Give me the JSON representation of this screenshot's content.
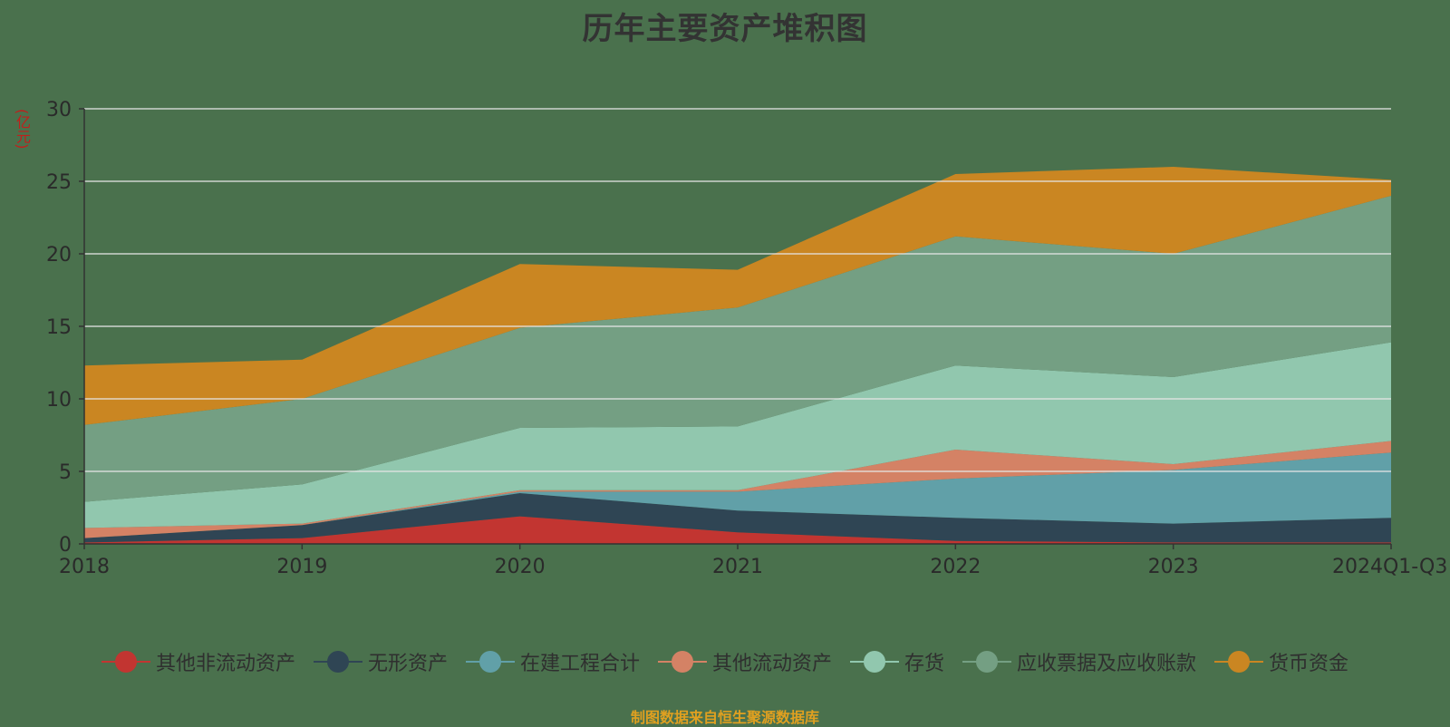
{
  "chart_data": {
    "type": "area",
    "stacked": true,
    "title": "历年主要资产堆积图",
    "ylabel": "(亿元)",
    "xlabel": "",
    "categories": [
      "2018",
      "2019",
      "2020",
      "2021",
      "2022",
      "2023",
      "2024Q1-Q3"
    ],
    "ylim": [
      0,
      30
    ],
    "yticks": [
      0,
      5,
      10,
      15,
      20,
      25,
      30
    ],
    "grid": true,
    "legend_position": "bottom",
    "series": [
      {
        "name": "其他非流动资产",
        "color": "#c23531",
        "values": [
          0.1,
          0.4,
          1.9,
          0.8,
          0.2,
          0.1,
          0.1
        ]
      },
      {
        "name": "无形资产",
        "color": "#2f4554",
        "values": [
          0.3,
          0.9,
          1.6,
          1.5,
          1.6,
          1.3,
          1.7
        ]
      },
      {
        "name": "在建工程合计",
        "color": "#61a0a8",
        "values": [
          0.0,
          0.0,
          0.1,
          1.3,
          2.7,
          3.7,
          4.5
        ]
      },
      {
        "name": "其他流动资产",
        "color": "#d48265",
        "values": [
          0.7,
          0.1,
          0.1,
          0.1,
          2.0,
          0.4,
          0.8
        ]
      },
      {
        "name": "存货",
        "color": "#91c7ae",
        "values": [
          1.8,
          2.7,
          4.3,
          4.4,
          5.8,
          6.0,
          6.8
        ]
      },
      {
        "name": "应收票据及应收账款",
        "color": "#749f83",
        "values": [
          5.3,
          5.9,
          6.9,
          8.2,
          8.9,
          8.5,
          10.1
        ]
      },
      {
        "name": "货币资金",
        "color": "#ca8622",
        "values": [
          4.1,
          2.7,
          4.4,
          2.6,
          4.3,
          6.0,
          1.1
        ]
      }
    ]
  },
  "footer": "制图数据来自恒生聚源数据库"
}
